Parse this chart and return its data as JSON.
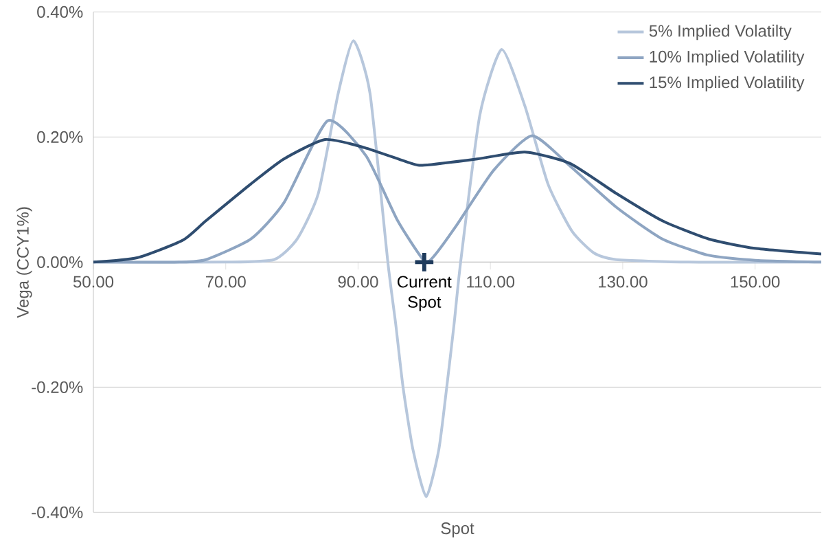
{
  "chart_data": {
    "type": "line",
    "xlabel": "Spot",
    "ylabel": "Vega (CCY1%)",
    "xlim": [
      50,
      160
    ],
    "ylim": [
      -0.4,
      0.4
    ],
    "xticks": [
      {
        "value": 50,
        "label": "50.00"
      },
      {
        "value": 70,
        "label": "70.00"
      },
      {
        "value": 90,
        "label": "90.00"
      },
      {
        "value": 110,
        "label": "110.00"
      },
      {
        "value": 130,
        "label": "130.00"
      },
      {
        "value": 150,
        "label": "150.00"
      }
    ],
    "yticks": [
      {
        "value": -0.4,
        "label": "-0.40%"
      },
      {
        "value": -0.2,
        "label": "-0.20%"
      },
      {
        "value": 0,
        "label": "0.00%"
      },
      {
        "value": 0.2,
        "label": "0.20%"
      },
      {
        "value": 0.4,
        "label": "0.40%"
      }
    ],
    "grid": "y",
    "legend": "top right",
    "line_style": "solid",
    "marker": "none",
    "series": [
      {
        "name": "5% Implied Volatilty",
        "color": "#b7c7dc",
        "x": [
          50,
          70,
          77.3,
          80.8,
          84,
          87,
          89.3,
          91.8,
          94.5,
          95.7,
          96.8,
          98.3,
          100.3,
          102.2,
          103.4,
          104.5,
          105.5,
          108.4,
          111.7,
          115.2,
          118.7,
          122.3,
          125.6,
          129,
          140,
          160
        ],
        "values": [
          0,
          0,
          0.004,
          0.037,
          0.11,
          0.27,
          0.354,
          0.27,
          0,
          -0.1,
          -0.2,
          -0.3,
          -0.375,
          -0.3,
          -0.2,
          -0.1,
          0,
          0.235,
          0.34,
          0.25,
          0.125,
          0.05,
          0.015,
          0.004,
          0,
          0
        ]
      },
      {
        "name": "10% Implied Volatility",
        "color": "#8ea5c2",
        "x": [
          50,
          63,
          67,
          73.8,
          78.8,
          85.4,
          91.2,
          96,
          100,
          101.5,
          104.9,
          110.5,
          116.3,
          122,
          129,
          136,
          143,
          150,
          160
        ],
        "values": [
          0,
          0,
          0.004,
          0.037,
          0.095,
          0.226,
          0.17,
          0.066,
          0.002,
          0.01,
          0.059,
          0.147,
          0.202,
          0.154,
          0.088,
          0.037,
          0.011,
          0.003,
          0
        ]
      },
      {
        "name": "15% Implied Volatility",
        "color": "#2f4d70",
        "x": [
          50,
          56.6,
          63.5,
          67,
          73.8,
          78.8,
          85,
          91,
          98,
          100,
          108,
          115.2,
          122,
          129,
          136,
          143,
          150,
          160
        ],
        "values": [
          0,
          0.007,
          0.035,
          0.066,
          0.125,
          0.165,
          0.196,
          0.183,
          0.158,
          0.155,
          0.165,
          0.176,
          0.158,
          0.11,
          0.066,
          0.037,
          0.022,
          0.013
        ]
      },
      {
        "type": "scatter",
        "marker": "cross",
        "color": "#1f3b5c",
        "x": [
          100
        ],
        "values": [
          0
        ]
      }
    ],
    "annotations": [
      {
        "text": "Current Spot",
        "x": 100,
        "y": 0
      }
    ]
  }
}
